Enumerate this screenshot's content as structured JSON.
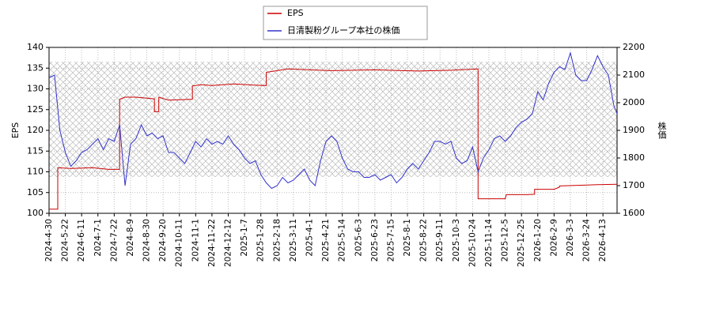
{
  "chart_data": {
    "type": "line",
    "y_label": "EPS",
    "y2_label": "株価",
    "ylim": [
      100,
      140
    ],
    "yticks": [
      100,
      105,
      110,
      115,
      120,
      125,
      130,
      135,
      140
    ],
    "y2lim": [
      1600,
      2200
    ],
    "y2ticks": [
      1600,
      1700,
      1800,
      1900,
      2000,
      2100,
      2200
    ],
    "xlim": [
      0,
      523
    ],
    "xticks": [
      {
        "value": 0,
        "label": "2024-4-30"
      },
      {
        "value": 15,
        "label": "2024-5-22"
      },
      {
        "value": 30,
        "label": "2024-6-11"
      },
      {
        "value": 45,
        "label": "2024-7-1"
      },
      {
        "value": 60,
        "label": "2024-7-22"
      },
      {
        "value": 75,
        "label": "2024-8-9"
      },
      {
        "value": 90,
        "label": "2024-8-30"
      },
      {
        "value": 105,
        "label": "2024-9-20"
      },
      {
        "value": 120,
        "label": "2024-10-11"
      },
      {
        "value": 135,
        "label": "2024-11-1"
      },
      {
        "value": 150,
        "label": "2024-11-22"
      },
      {
        "value": 165,
        "label": "2024-12-12"
      },
      {
        "value": 180,
        "label": "2025-1-7"
      },
      {
        "value": 195,
        "label": "2025-1-28"
      },
      {
        "value": 210,
        "label": "2025-2-18"
      },
      {
        "value": 225,
        "label": "2025-3-11"
      },
      {
        "value": 240,
        "label": "2025-4-1"
      },
      {
        "value": 255,
        "label": "2025-4-21"
      },
      {
        "value": 270,
        "label": "2025-5-14"
      },
      {
        "value": 285,
        "label": "2025-6-3"
      },
      {
        "value": 300,
        "label": "2025-6-23"
      },
      {
        "value": 315,
        "label": "2025-7-15"
      },
      {
        "value": 330,
        "label": "2025-8-1"
      },
      {
        "value": 345,
        "label": "2025-8-22"
      },
      {
        "value": 360,
        "label": "2025-9-11"
      },
      {
        "value": 375,
        "label": "2025-10-3"
      },
      {
        "value": 390,
        "label": "2025-10-24"
      },
      {
        "value": 405,
        "label": "2025-11-14"
      },
      {
        "value": 420,
        "label": "2025-12-5"
      },
      {
        "value": 435,
        "label": "2025-12-25"
      },
      {
        "value": 450,
        "label": "2026-1-20"
      },
      {
        "value": 465,
        "label": "2026-2-9"
      },
      {
        "value": 480,
        "label": "2026-3-3"
      },
      {
        "value": 495,
        "label": "2026-3-24"
      },
      {
        "value": 510,
        "label": "2026-4-13"
      }
    ],
    "grid": true,
    "series": [
      {
        "name": "EPS",
        "color": "#cc0000",
        "x": [
          0,
          8,
          8,
          20,
          40,
          55,
          65,
          65,
          70,
          80,
          97,
          97,
          101,
          101,
          110,
          132,
          132,
          140,
          150,
          170,
          189,
          200,
          200,
          220,
          260,
          300,
          340,
          370,
          395,
          395,
          420,
          421,
          440,
          447,
          447,
          465,
          470,
          470,
          495,
          505,
          523
        ],
        "values": [
          101,
          101,
          111,
          110.8,
          111,
          110.6,
          110.6,
          127.5,
          128,
          128,
          127.6,
          124.5,
          124.5,
          128,
          127.3,
          127.5,
          130.7,
          131,
          130.8,
          131.2,
          130.9,
          130.8,
          134,
          134.8,
          134.4,
          134.6,
          134.3,
          134.5,
          134.8,
          103.5,
          103.5,
          104.5,
          104.5,
          104.6,
          105.8,
          105.8,
          106.3,
          106.6,
          106.8,
          106.9,
          107
        ]
      },
      {
        "name": "日清製粉グループ本社の株価",
        "color": "#3333cc",
        "axis": "y2",
        "x": [
          0,
          5,
          10,
          15,
          20,
          25,
          30,
          35,
          40,
          45,
          50,
          55,
          60,
          65,
          70,
          75,
          80,
          85,
          90,
          95,
          100,
          105,
          110,
          115,
          120,
          125,
          130,
          135,
          140,
          145,
          150,
          155,
          160,
          165,
          170,
          175,
          180,
          185,
          190,
          195,
          200,
          205,
          210,
          215,
          220,
          225,
          230,
          235,
          240,
          245,
          250,
          255,
          260,
          265,
          270,
          275,
          280,
          285,
          290,
          295,
          300,
          305,
          310,
          315,
          320,
          325,
          330,
          335,
          340,
          345,
          350,
          355,
          360,
          365,
          370,
          375,
          380,
          385,
          390,
          395,
          400,
          405,
          410,
          415,
          420,
          425,
          430,
          435,
          440,
          445,
          450,
          455,
          460,
          465,
          470,
          475,
          480,
          485,
          490,
          495,
          500,
          505,
          510,
          515,
          520,
          523
        ],
        "values": [
          2090,
          2100,
          1900,
          1820,
          1770,
          1790,
          1820,
          1830,
          1850,
          1870,
          1830,
          1870,
          1860,
          1920,
          1700,
          1850,
          1870,
          1920,
          1880,
          1890,
          1870,
          1880,
          1820,
          1820,
          1800,
          1780,
          1820,
          1860,
          1840,
          1870,
          1850,
          1860,
          1850,
          1880,
          1850,
          1830,
          1800,
          1780,
          1790,
          1740,
          1710,
          1690,
          1700,
          1730,
          1710,
          1720,
          1740,
          1760,
          1720,
          1700,
          1790,
          1860,
          1880,
          1860,
          1800,
          1760,
          1750,
          1750,
          1730,
          1730,
          1740,
          1720,
          1730,
          1740,
          1710,
          1730,
          1760,
          1780,
          1760,
          1790,
          1820,
          1860,
          1860,
          1850,
          1860,
          1800,
          1780,
          1790,
          1840,
          1750,
          1800,
          1830,
          1870,
          1880,
          1860,
          1880,
          1910,
          1930,
          1940,
          1960,
          2040,
          2010,
          2070,
          2110,
          2130,
          2120,
          2180,
          2100,
          2080,
          2080,
          2120,
          2170,
          2130,
          2100,
          1990,
          1960
        ]
      }
    ]
  }
}
